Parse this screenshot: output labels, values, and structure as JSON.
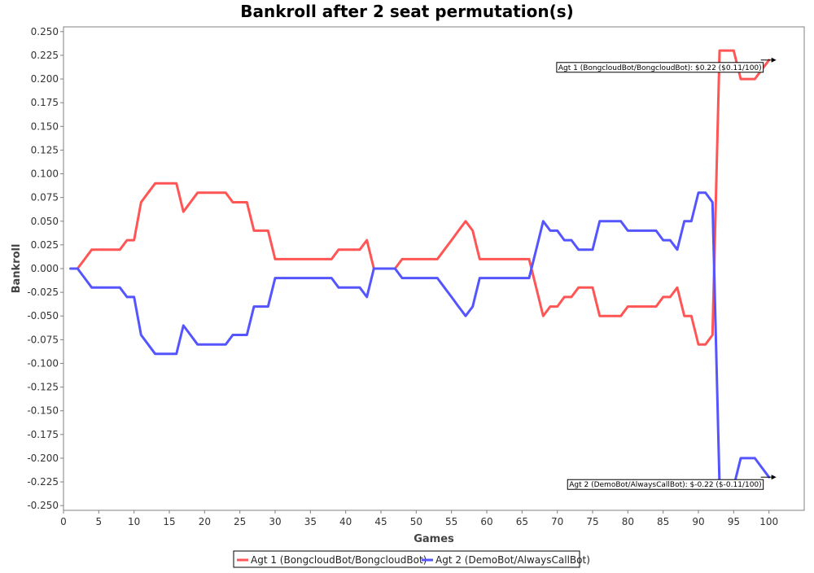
{
  "chart_data": {
    "type": "line",
    "title": "Bankroll after 2 seat permutation(s)",
    "xlabel": "Games",
    "ylabel": "Bankroll",
    "xlim": [
      0,
      105
    ],
    "ylim": [
      -0.255,
      0.255
    ],
    "x_ticks": [
      0,
      5,
      10,
      15,
      20,
      25,
      30,
      35,
      40,
      45,
      50,
      55,
      60,
      65,
      70,
      75,
      80,
      85,
      90,
      95,
      100
    ],
    "y_ticks": [
      0.25,
      0.225,
      0.2,
      0.175,
      0.15,
      0.125,
      0.1,
      0.075,
      0.05,
      0.025,
      0.0,
      -0.025,
      -0.05,
      -0.075,
      -0.1,
      -0.125,
      -0.15,
      -0.175,
      -0.2,
      -0.225,
      -0.25
    ],
    "y_tick_labels": [
      "0.250",
      "0.225",
      "0.200",
      "0.175",
      "0.150",
      "0.125",
      "0.100",
      "0.075",
      "0.050",
      "0.025",
      "0.000",
      "-0.025",
      "-0.050",
      "-0.075",
      "-0.100",
      "-0.125",
      "-0.150",
      "-0.175",
      "-0.200",
      "-0.225",
      "-0.250"
    ],
    "grid": false,
    "legend_position": "bottom",
    "series": [
      {
        "name": "Agt 1 (BongcloudBot/BongcloudBot)",
        "color": "#ff5555",
        "x": [
          1,
          2,
          3,
          4,
          5,
          6,
          7,
          8,
          9,
          10,
          11,
          12,
          13,
          14,
          15,
          16,
          17,
          18,
          19,
          20,
          21,
          22,
          23,
          24,
          25,
          26,
          27,
          28,
          29,
          30,
          31,
          32,
          33,
          34,
          35,
          36,
          37,
          38,
          39,
          40,
          41,
          42,
          43,
          44,
          45,
          46,
          47,
          48,
          49,
          50,
          51,
          52,
          53,
          54,
          55,
          56,
          57,
          58,
          59,
          60,
          61,
          62,
          63,
          64,
          65,
          66,
          67,
          68,
          69,
          70,
          71,
          72,
          73,
          74,
          75,
          76,
          77,
          78,
          79,
          80,
          81,
          82,
          83,
          84,
          85,
          86,
          87,
          88,
          89,
          90,
          91,
          92,
          93,
          94,
          95,
          96,
          97,
          98,
          99,
          100
        ],
        "y": [
          0,
          0,
          0.01,
          0.02,
          0.02,
          0.02,
          0.02,
          0.02,
          0.03,
          0.03,
          0.07,
          0.08,
          0.09,
          0.09,
          0.09,
          0.09,
          0.06,
          0.07,
          0.08,
          0.08,
          0.08,
          0.08,
          0.08,
          0.07,
          0.07,
          0.07,
          0.04,
          0.04,
          0.04,
          0.01,
          0.01,
          0.01,
          0.01,
          0.01,
          0.01,
          0.01,
          0.01,
          0.01,
          0.02,
          0.02,
          0.02,
          0.02,
          0.03,
          0,
          0,
          0,
          0,
          0.01,
          0.01,
          0.01,
          0.01,
          0.01,
          0.01,
          0.02,
          0.03,
          0.04,
          0.05,
          0.04,
          0.01,
          0.01,
          0.01,
          0.01,
          0.01,
          0.01,
          0.01,
          0.01,
          -0.02,
          -0.05,
          -0.04,
          -0.04,
          -0.03,
          -0.03,
          -0.02,
          -0.02,
          -0.02,
          -0.05,
          -0.05,
          -0.05,
          -0.05,
          -0.04,
          -0.04,
          -0.04,
          -0.04,
          -0.04,
          -0.03,
          -0.03,
          -0.02,
          -0.05,
          -0.05,
          -0.08,
          -0.08,
          -0.07,
          0.23,
          0.23,
          0.23,
          0.2,
          0.2,
          0.2,
          0.21,
          0.22
        ]
      },
      {
        "name": "Agt 2 (DemoBot/AlwaysCallBot)",
        "color": "#5555ff",
        "x": [
          1,
          2,
          3,
          4,
          5,
          6,
          7,
          8,
          9,
          10,
          11,
          12,
          13,
          14,
          15,
          16,
          17,
          18,
          19,
          20,
          21,
          22,
          23,
          24,
          25,
          26,
          27,
          28,
          29,
          30,
          31,
          32,
          33,
          34,
          35,
          36,
          37,
          38,
          39,
          40,
          41,
          42,
          43,
          44,
          45,
          46,
          47,
          48,
          49,
          50,
          51,
          52,
          53,
          54,
          55,
          56,
          57,
          58,
          59,
          60,
          61,
          62,
          63,
          64,
          65,
          66,
          67,
          68,
          69,
          70,
          71,
          72,
          73,
          74,
          75,
          76,
          77,
          78,
          79,
          80,
          81,
          82,
          83,
          84,
          85,
          86,
          87,
          88,
          89,
          90,
          91,
          92,
          93,
          94,
          95,
          96,
          97,
          98,
          99,
          100
        ],
        "y": [
          0,
          0,
          -0.01,
          -0.02,
          -0.02,
          -0.02,
          -0.02,
          -0.02,
          -0.03,
          -0.03,
          -0.07,
          -0.08,
          -0.09,
          -0.09,
          -0.09,
          -0.09,
          -0.06,
          -0.07,
          -0.08,
          -0.08,
          -0.08,
          -0.08,
          -0.08,
          -0.07,
          -0.07,
          -0.07,
          -0.04,
          -0.04,
          -0.04,
          -0.01,
          -0.01,
          -0.01,
          -0.01,
          -0.01,
          -0.01,
          -0.01,
          -0.01,
          -0.01,
          -0.02,
          -0.02,
          -0.02,
          -0.02,
          -0.03,
          0,
          0,
          0,
          0,
          -0.01,
          -0.01,
          -0.01,
          -0.01,
          -0.01,
          -0.01,
          -0.02,
          -0.03,
          -0.04,
          -0.05,
          -0.04,
          -0.01,
          -0.01,
          -0.01,
          -0.01,
          -0.01,
          -0.01,
          -0.01,
          -0.01,
          0.02,
          0.05,
          0.04,
          0.04,
          0.03,
          0.03,
          0.02,
          0.02,
          0.02,
          0.05,
          0.05,
          0.05,
          0.05,
          0.04,
          0.04,
          0.04,
          0.04,
          0.04,
          0.03,
          0.03,
          0.02,
          0.05,
          0.05,
          0.08,
          0.08,
          0.07,
          -0.23,
          -0.23,
          -0.23,
          -0.2,
          -0.2,
          -0.2,
          -0.21,
          -0.22
        ]
      }
    ],
    "annotations": [
      {
        "text": "Agt 1 (BongcloudBot/BongcloudBot): $0.22 ($0.11/100)",
        "x": 100,
        "y": 0.22
      },
      {
        "text": "Agt 2 (DemoBot/AlwaysCallBot): $-0.22 ($-0.11/100)",
        "x": 100,
        "y": -0.22
      }
    ]
  }
}
